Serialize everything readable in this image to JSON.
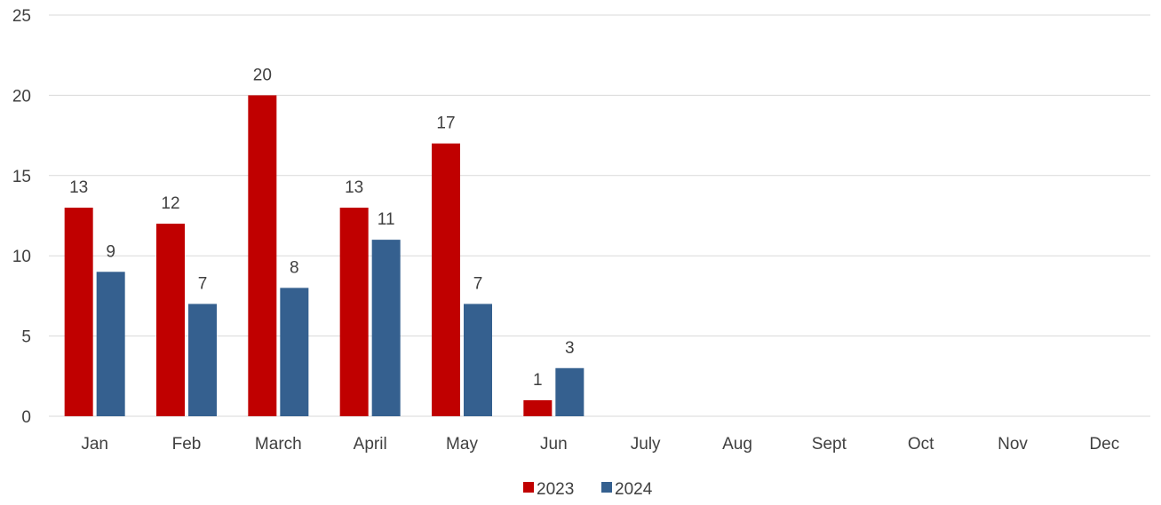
{
  "chart_data": {
    "type": "bar",
    "title": "",
    "xlabel": "",
    "ylabel": "",
    "categories": [
      "Jan",
      "Feb",
      "March",
      "April",
      "May",
      "Jun",
      "July",
      "Aug",
      "Sept",
      "Oct",
      "Nov",
      "Dec"
    ],
    "series": [
      {
        "name": "2023",
        "color": "#C00000",
        "values": [
          13,
          12,
          20,
          13,
          17,
          1,
          null,
          null,
          null,
          null,
          null,
          null
        ]
      },
      {
        "name": "2024",
        "color": "#35608F",
        "values": [
          9,
          7,
          8,
          11,
          7,
          3,
          null,
          null,
          null,
          null,
          null,
          null
        ]
      }
    ],
    "ylim": [
      0,
      25
    ],
    "yticks": [
      0,
      5,
      10,
      15,
      20,
      25
    ],
    "grid": true,
    "gridline_color": "#D9D9D9",
    "text_color": "#404040",
    "legend_position": "bottom-center",
    "data_labels": true
  }
}
